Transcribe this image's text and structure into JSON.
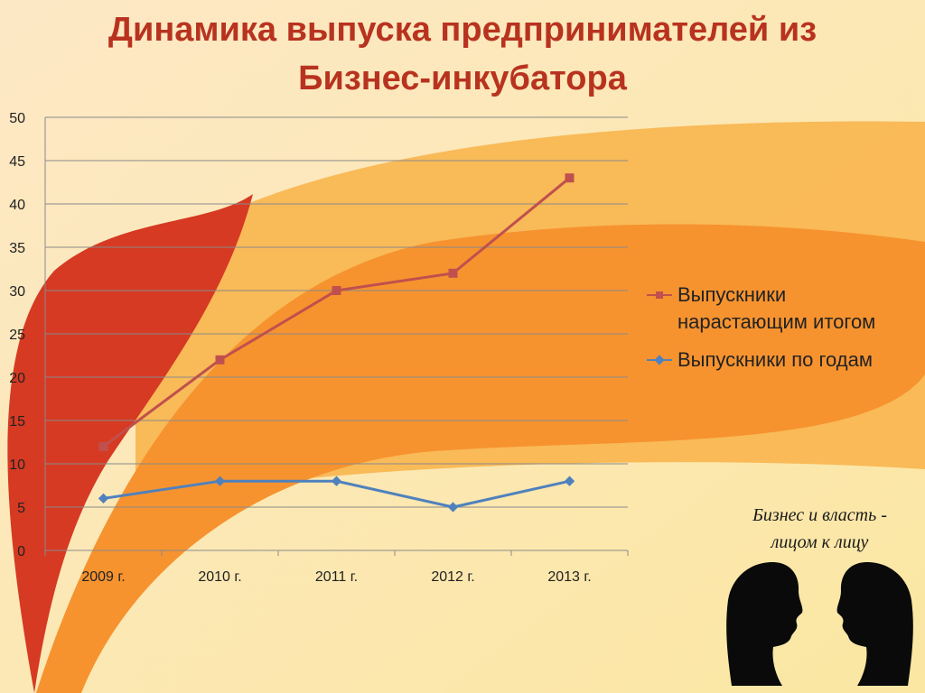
{
  "title_line1": "Динамика выпуска предпринимателей из",
  "title_line2": "Бизнес-инкубатора",
  "colors": {
    "series_cumulative": "#c0504d",
    "series_yearly": "#4f81bd",
    "title": "#b8331f",
    "gridline": "#8a8a8a"
  },
  "legend": {
    "cumulative": "Выпускники нарастающим итогом",
    "yearly": "Выпускники по годам"
  },
  "logo": {
    "line1": "Бизнес и власть -",
    "line2": "лицом к лицу"
  },
  "chart_data": {
    "type": "line",
    "categories": [
      "2009 г.",
      "2010 г.",
      "2011 г.",
      "2012 г.",
      "2013 г."
    ],
    "series": [
      {
        "name": "Выпускники нарастающим итогом",
        "values": [
          12,
          22,
          30,
          32,
          43
        ],
        "marker": "square"
      },
      {
        "name": "Выпускники по годам",
        "values": [
          6,
          8,
          8,
          5,
          8
        ],
        "marker": "diamond"
      }
    ],
    "yticks": [
      0,
      5,
      10,
      15,
      20,
      25,
      30,
      35,
      40,
      45,
      50
    ],
    "ylim": [
      0,
      50
    ],
    "grid": true,
    "legend_position": "right"
  }
}
